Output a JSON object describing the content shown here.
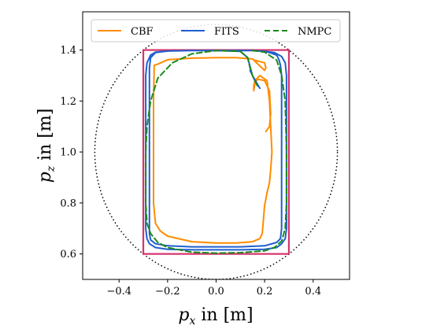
{
  "chart_data": {
    "type": "line",
    "xlabel": "p_x in [m]",
    "ylabel": "p_z in [m]",
    "xlabel_parts": {
      "var": "p",
      "sub": "x",
      "rest": " in [m]"
    },
    "ylabel_parts": {
      "var": "p",
      "sub": "z",
      "rest": " in [m]"
    },
    "xlim": [
      -0.55,
      0.55
    ],
    "ylim": [
      0.5,
      1.55
    ],
    "xticks": [
      -0.4,
      -0.2,
      0.0,
      0.2,
      0.4
    ],
    "xtick_labels": [
      "−0.4",
      "−0.2",
      "0.0",
      "0.2",
      "0.4"
    ],
    "yticks": [
      0.6,
      0.8,
      1.0,
      1.2,
      1.4
    ],
    "ytick_labels": [
      "0.6",
      "0.8",
      "1.0",
      "1.2",
      "1.4"
    ],
    "grid": false,
    "legend_placement": "top",
    "constraint_box": {
      "x": [
        -0.3,
        0.3
      ],
      "y": [
        0.6,
        1.4
      ],
      "color": "#d6336c"
    },
    "circle": {
      "center": [
        0.0,
        1.0
      ],
      "radius": 0.5,
      "color": "#000000",
      "style": "dotted"
    },
    "series": [
      {
        "name": "CBF",
        "color": "#ff8c00",
        "dash": "solid",
        "x": [
          0.16,
          0.2,
          0.205,
          0.2,
          0.15,
          0.08,
          0.0,
          -0.1,
          -0.2,
          -0.24,
          -0.255,
          -0.258,
          -0.258,
          -0.258,
          -0.25,
          -0.23,
          -0.2,
          -0.1,
          0.0,
          0.08,
          0.15,
          0.18,
          0.19,
          0.2,
          0.21,
          0.22,
          0.225,
          0.23,
          0.225,
          0.22,
          0.21,
          0.18,
          0.16,
          0.155,
          0.155,
          0.16,
          0.165,
          0.175,
          0.2,
          0.22,
          0.225,
          0.22,
          0.205
        ],
        "y": [
          1.36,
          1.35,
          1.33,
          1.32,
          1.365,
          1.37,
          1.37,
          1.368,
          1.362,
          1.345,
          1.34,
          1.2,
          1.0,
          0.8,
          0.72,
          0.69,
          0.67,
          0.648,
          0.643,
          0.643,
          0.648,
          0.66,
          0.68,
          0.79,
          0.84,
          0.88,
          0.93,
          1.0,
          1.1,
          1.2,
          1.28,
          1.3,
          1.28,
          1.26,
          1.24,
          1.27,
          1.28,
          1.285,
          1.28,
          1.24,
          1.15,
          1.1,
          1.08
        ]
      },
      {
        "name": "FITS",
        "color": "#1f5fcf",
        "dash": "solid",
        "x": [
          0.14,
          0.16,
          0.18,
          0.15,
          0.13,
          0.1,
          0.0,
          -0.1,
          -0.2,
          -0.25,
          -0.27,
          -0.285,
          -0.29,
          -0.29,
          -0.29,
          -0.285,
          -0.275,
          -0.25,
          -0.2,
          -0.1,
          0.0,
          0.1,
          0.2,
          0.25,
          0.27,
          0.285,
          0.29,
          0.29,
          0.29,
          0.285,
          0.27,
          0.24,
          0.2,
          0.15,
          0.1,
          0.0,
          -0.1,
          -0.2,
          -0.25,
          -0.27,
          -0.275,
          -0.275,
          -0.275,
          -0.27,
          -0.25,
          -0.2,
          -0.1,
          0.0,
          0.1,
          0.2,
          0.25,
          0.265,
          0.27,
          0.27,
          0.27,
          0.265,
          0.26,
          0.25,
          0.22,
          0.2
        ],
        "y": [
          1.32,
          1.28,
          1.25,
          1.3,
          1.37,
          1.395,
          1.398,
          1.398,
          1.396,
          1.392,
          1.38,
          1.35,
          1.3,
          1.0,
          0.7,
          0.66,
          0.64,
          0.625,
          0.618,
          0.616,
          0.616,
          0.616,
          0.618,
          0.625,
          0.64,
          0.66,
          0.7,
          1.0,
          1.3,
          1.35,
          1.375,
          1.39,
          1.395,
          1.398,
          1.398,
          1.398,
          1.398,
          1.396,
          1.39,
          1.37,
          1.33,
          1.0,
          0.68,
          0.655,
          0.64,
          0.632,
          0.628,
          0.628,
          0.628,
          0.632,
          0.645,
          0.66,
          0.7,
          1.0,
          1.3,
          1.34,
          1.36,
          1.38,
          1.39,
          1.395
        ]
      },
      {
        "name": "NMPC",
        "color": "#1a8a1a",
        "dash": "dashed",
        "x": [
          0.17,
          0.15,
          0.14,
          0.13,
          0.1,
          0.0,
          -0.1,
          -0.18,
          -0.24,
          -0.27,
          -0.285,
          -0.29,
          -0.29,
          -0.285,
          -0.27,
          -0.24,
          -0.2,
          -0.1,
          0.0,
          0.1,
          0.2,
          0.24,
          0.27,
          0.285,
          0.29,
          0.29,
          0.285,
          0.27,
          0.25,
          0.2,
          0.15
        ],
        "y": [
          1.26,
          1.3,
          1.33,
          1.37,
          1.395,
          1.398,
          1.385,
          1.35,
          1.29,
          1.2,
          1.1,
          1.0,
          0.8,
          0.72,
          0.68,
          0.645,
          0.625,
          0.607,
          0.603,
          0.605,
          0.612,
          0.625,
          0.65,
          0.7,
          0.8,
          1.0,
          1.2,
          1.3,
          1.36,
          1.392,
          1.398
        ]
      }
    ]
  }
}
